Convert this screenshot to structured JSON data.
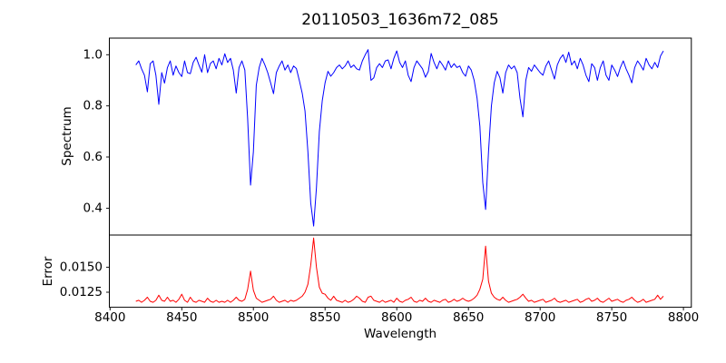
{
  "chart_data": {
    "type": "line",
    "title": "20110503_1636m72_085",
    "xlabel": "Wavelength",
    "grid": false,
    "legend": "none",
    "xlim": [
      8399.5,
      8805.5
    ],
    "xticks": [
      8400,
      8450,
      8500,
      8550,
      8600,
      8650,
      8700,
      8750,
      8800
    ],
    "xtick_labels": [
      "8400",
      "8450",
      "8500",
      "8550",
      "8600",
      "8650",
      "8700",
      "8750",
      "8800"
    ],
    "x": [
      8418,
      8420,
      8422,
      8424,
      8426,
      8428,
      8430,
      8432,
      8434,
      8436,
      8438,
      8440,
      8442,
      8444,
      8446,
      8448,
      8450,
      8452,
      8454,
      8456,
      8458,
      8460,
      8462,
      8464,
      8466,
      8468,
      8470,
      8472,
      8474,
      8476,
      8478,
      8480,
      8482,
      8484,
      8486,
      8488,
      8490,
      8492,
      8494,
      8496,
      8498,
      8500,
      8502,
      8504,
      8506,
      8508,
      8510,
      8512,
      8514,
      8516,
      8518,
      8520,
      8522,
      8524,
      8526,
      8528,
      8530,
      8532,
      8534,
      8536,
      8538,
      8540,
      8542,
      8544,
      8546,
      8548,
      8550,
      8552,
      8554,
      8556,
      8558,
      8560,
      8562,
      8564,
      8566,
      8568,
      8570,
      8572,
      8574,
      8576,
      8578,
      8580,
      8582,
      8584,
      8586,
      8588,
      8590,
      8592,
      8594,
      8596,
      8598,
      8600,
      8602,
      8604,
      8606,
      8608,
      8610,
      8612,
      8614,
      8616,
      8618,
      8620,
      8622,
      8624,
      8626,
      8628,
      8630,
      8632,
      8634,
      8636,
      8638,
      8640,
      8642,
      8644,
      8646,
      8648,
      8650,
      8652,
      8654,
      8656,
      8658,
      8660,
      8662,
      8664,
      8666,
      8668,
      8670,
      8672,
      8674,
      8676,
      8678,
      8680,
      8682,
      8684,
      8686,
      8688,
      8690,
      8692,
      8694,
      8696,
      8698,
      8700,
      8702,
      8704,
      8706,
      8708,
      8710,
      8712,
      8714,
      8716,
      8718,
      8720,
      8722,
      8724,
      8726,
      8728,
      8730,
      8732,
      8734,
      8736,
      8738,
      8740,
      8742,
      8744,
      8746,
      8748,
      8750,
      8752,
      8754,
      8756,
      8758,
      8760,
      8762,
      8764,
      8766,
      8768,
      8770,
      8772,
      8774,
      8776,
      8778,
      8780,
      8782,
      8784,
      8786
    ],
    "panels": [
      {
        "name": "spectrum",
        "ylabel": "Spectrum",
        "color": "#0000ff",
        "ylim": [
          0.295,
          1.065
        ],
        "yticks": [
          0.4,
          0.6,
          0.8,
          1.0
        ],
        "ytick_labels": [
          "0.4",
          "0.6",
          "0.8",
          "1.0"
        ],
        "notable_features": "Ca II triplet absorption lines near 8498, 8542, 8662",
        "values": [
          0.96,
          0.976,
          0.945,
          0.92,
          0.855,
          0.965,
          0.976,
          0.92,
          0.806,
          0.93,
          0.889,
          0.95,
          0.976,
          0.92,
          0.956,
          0.93,
          0.915,
          0.976,
          0.93,
          0.926,
          0.97,
          0.99,
          0.96,
          0.932,
          1.0,
          0.93,
          0.966,
          0.976,
          0.945,
          0.986,
          0.96,
          1.004,
          0.97,
          0.986,
          0.94,
          0.85,
          0.95,
          0.976,
          0.94,
          0.75,
          0.49,
          0.62,
          0.88,
          0.95,
          0.986,
          0.96,
          0.93,
          0.89,
          0.848,
          0.93,
          0.956,
          0.976,
          0.94,
          0.96,
          0.93,
          0.956,
          0.946,
          0.9,
          0.85,
          0.78,
          0.62,
          0.42,
          0.33,
          0.48,
          0.7,
          0.82,
          0.89,
          0.935,
          0.916,
          0.93,
          0.95,
          0.96,
          0.945,
          0.956,
          0.976,
          0.95,
          0.96,
          0.945,
          0.94,
          0.976,
          1.0,
          1.02,
          0.9,
          0.91,
          0.95,
          0.965,
          0.95,
          0.976,
          0.98,
          0.945,
          0.986,
          1.015,
          0.97,
          0.95,
          0.976,
          0.92,
          0.895,
          0.95,
          0.976,
          0.96,
          0.945,
          0.912,
          0.935,
          1.005,
          0.97,
          0.945,
          0.976,
          0.96,
          0.94,
          0.976,
          0.95,
          0.965,
          0.95,
          0.956,
          0.93,
          0.916,
          0.956,
          0.94,
          0.9,
          0.83,
          0.72,
          0.5,
          0.395,
          0.62,
          0.8,
          0.89,
          0.935,
          0.91,
          0.85,
          0.93,
          0.96,
          0.945,
          0.956,
          0.93,
          0.83,
          0.757,
          0.9,
          0.95,
          0.935,
          0.96,
          0.945,
          0.93,
          0.92,
          0.956,
          0.976,
          0.94,
          0.905,
          0.96,
          0.986,
          1.0,
          0.97,
          1.01,
          0.96,
          0.976,
          0.945,
          0.986,
          0.96,
          0.92,
          0.895,
          0.965,
          0.95,
          0.9,
          0.95,
          0.976,
          0.92,
          0.9,
          0.96,
          0.94,
          0.915,
          0.95,
          0.976,
          0.945,
          0.92,
          0.89,
          0.95,
          0.976,
          0.96,
          0.94,
          0.986,
          0.96,
          0.945,
          0.97,
          0.95,
          0.995,
          1.015
        ]
      },
      {
        "name": "error",
        "ylabel": "Error",
        "color": "#ff0000",
        "ylim": [
          0.011,
          0.0182
        ],
        "yticks": [
          0.0125,
          0.015
        ],
        "ytick_labels": [
          "0.0125",
          "0.0150"
        ],
        "notable_features": "error spikes at 8498 (~0.0146), 8542 (~0.0179), 8662 (~0.0171); baseline ~0.0116",
        "values": [
          0.0116,
          0.0117,
          0.0115,
          0.0117,
          0.012,
          0.0116,
          0.0115,
          0.0117,
          0.0122,
          0.0117,
          0.0116,
          0.012,
          0.0116,
          0.0117,
          0.0115,
          0.0118,
          0.0123,
          0.0117,
          0.0115,
          0.012,
          0.0116,
          0.0115,
          0.0117,
          0.0116,
          0.0115,
          0.0119,
          0.0116,
          0.0115,
          0.0117,
          0.0115,
          0.0116,
          0.0115,
          0.0117,
          0.0115,
          0.0117,
          0.012,
          0.0117,
          0.0116,
          0.0118,
          0.0128,
          0.0146,
          0.0127,
          0.0119,
          0.0117,
          0.0115,
          0.0116,
          0.0117,
          0.0118,
          0.0121,
          0.0117,
          0.0115,
          0.0116,
          0.0117,
          0.0115,
          0.0117,
          0.0116,
          0.0117,
          0.0119,
          0.0121,
          0.0125,
          0.0133,
          0.0152,
          0.0179,
          0.015,
          0.013,
          0.0124,
          0.0123,
          0.0119,
          0.0117,
          0.0121,
          0.0117,
          0.0116,
          0.0115,
          0.0117,
          0.0115,
          0.0116,
          0.0118,
          0.0121,
          0.0119,
          0.0116,
          0.0115,
          0.012,
          0.0121,
          0.0117,
          0.0116,
          0.0115,
          0.0117,
          0.0115,
          0.0116,
          0.0117,
          0.0115,
          0.0119,
          0.0116,
          0.0115,
          0.0117,
          0.0118,
          0.012,
          0.0116,
          0.0115,
          0.0117,
          0.0116,
          0.0119,
          0.0116,
          0.0115,
          0.0117,
          0.0116,
          0.0115,
          0.0117,
          0.0118,
          0.0115,
          0.0116,
          0.0118,
          0.0116,
          0.0117,
          0.0119,
          0.0117,
          0.0116,
          0.0117,
          0.0119,
          0.0122,
          0.0128,
          0.0138,
          0.0171,
          0.0136,
          0.0124,
          0.012,
          0.0118,
          0.0117,
          0.012,
          0.0117,
          0.0115,
          0.0116,
          0.0117,
          0.0118,
          0.012,
          0.0123,
          0.0119,
          0.0116,
          0.0117,
          0.0115,
          0.0116,
          0.0117,
          0.0118,
          0.0115,
          0.0116,
          0.0117,
          0.0119,
          0.0116,
          0.0115,
          0.0116,
          0.0117,
          0.0115,
          0.0116,
          0.0117,
          0.0118,
          0.0115,
          0.0116,
          0.0118,
          0.0119,
          0.0116,
          0.0117,
          0.0119,
          0.0116,
          0.0115,
          0.0117,
          0.0119,
          0.0116,
          0.0117,
          0.0118,
          0.0116,
          0.0115,
          0.0117,
          0.0118,
          0.012,
          0.0117,
          0.0115,
          0.0116,
          0.0118,
          0.0115,
          0.0116,
          0.0117,
          0.0118,
          0.0122,
          0.0118,
          0.0121
        ]
      }
    ]
  }
}
